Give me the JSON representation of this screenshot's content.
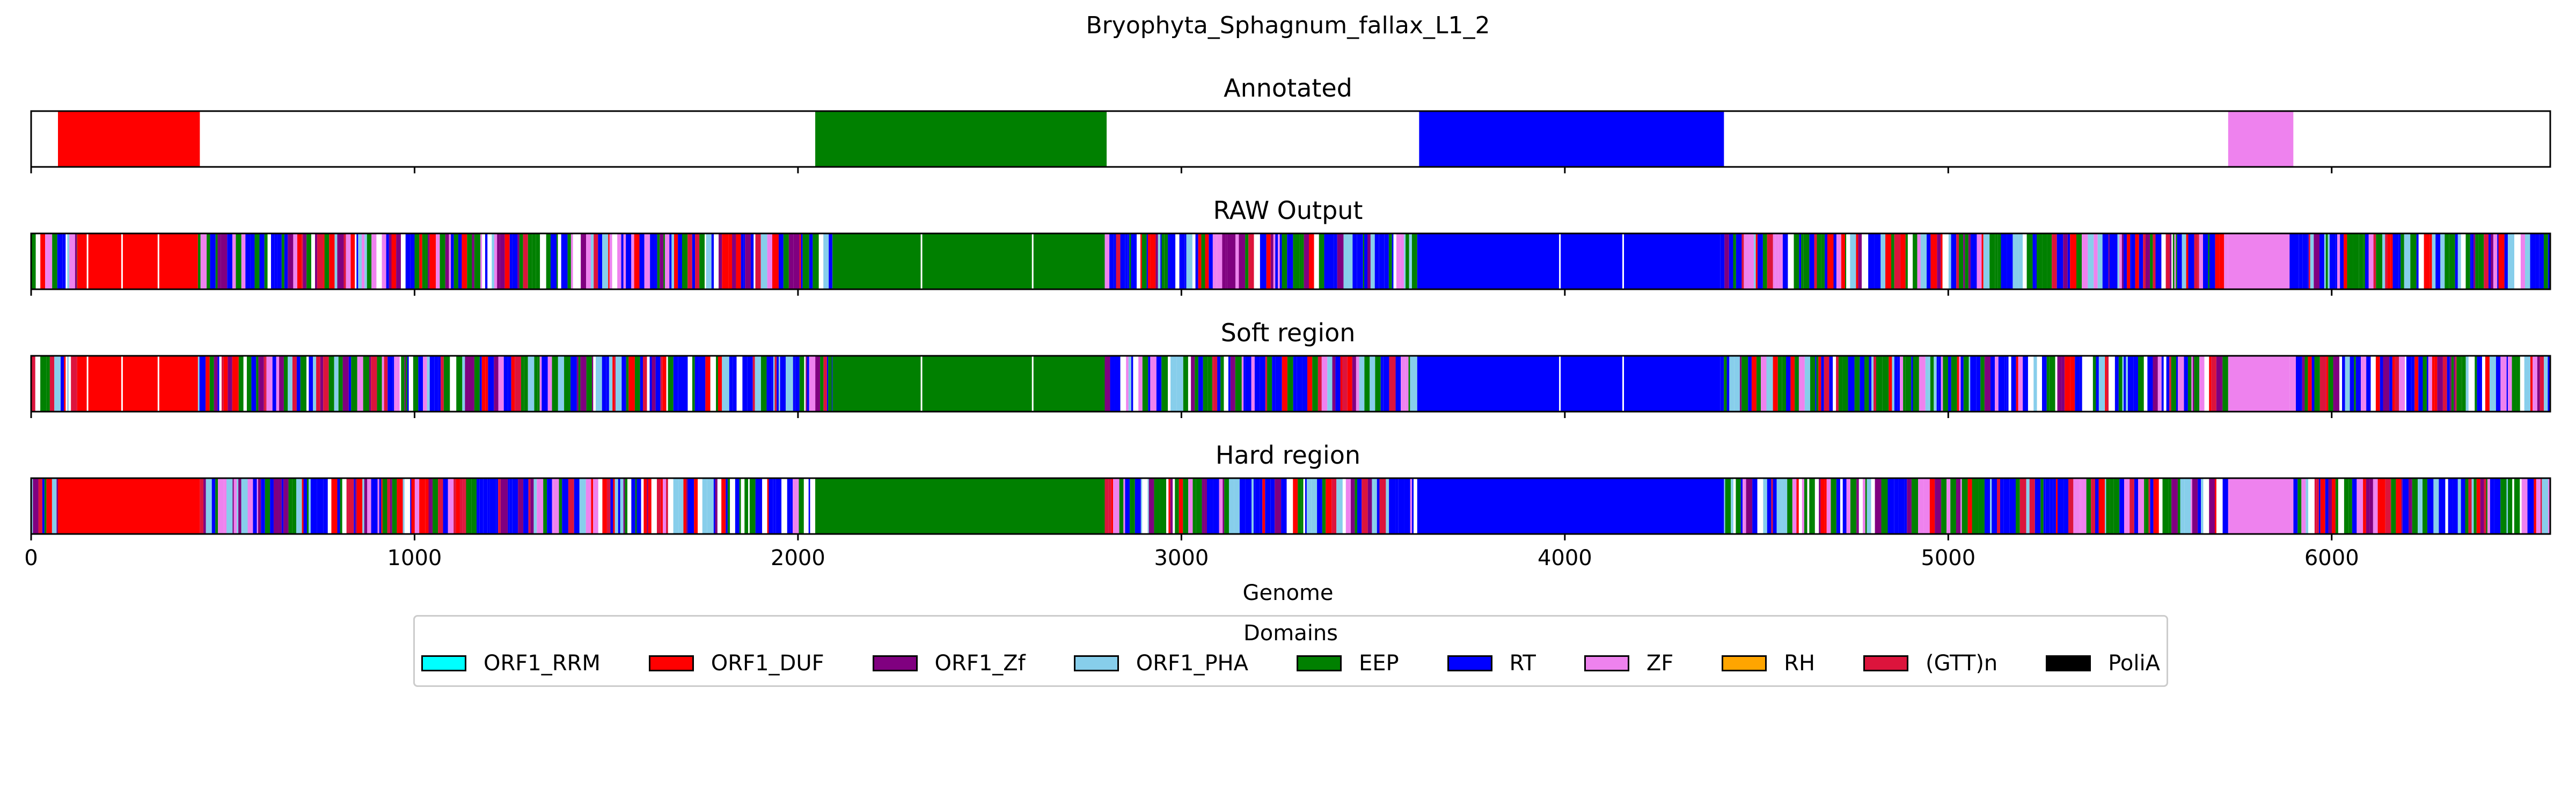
{
  "chart_data": {
    "type": "genome-track",
    "title": "Bryophyta_Sphagnum_fallax_L1_2",
    "xlabel": "Genome",
    "xlim": [
      0,
      6570
    ],
    "xticks": [
      0,
      1000,
      2000,
      3000,
      4000,
      5000,
      6000
    ],
    "legend_title": "Domains",
    "legend_placement": "bottom-center",
    "domains": [
      {
        "name": "ORF1_RRM",
        "color": "#00ffff"
      },
      {
        "name": "ORF1_DUF",
        "color": "#ff0000"
      },
      {
        "name": "ORF1_Zf",
        "color": "#800080"
      },
      {
        "name": "ORF1_PHA",
        "color": "#87ceeb"
      },
      {
        "name": "EEP",
        "color": "#008000"
      },
      {
        "name": "RT",
        "color": "#0000ff"
      },
      {
        "name": "ZF",
        "color": "#ee82ee"
      },
      {
        "name": "RH",
        "color": "#ffa500"
      },
      {
        "name": "(GTT)n",
        "color": "#dc143c"
      },
      {
        "name": "PoliA",
        "color": "#000000"
      }
    ],
    "tracks": [
      {
        "name": "Annotated",
        "segments": [
          {
            "domain": "ORF1_DUF",
            "start": 70,
            "end": 440
          },
          {
            "domain": "EEP",
            "start": 2045,
            "end": 2805
          },
          {
            "domain": "RT",
            "start": 3620,
            "end": 4415
          },
          {
            "domain": "ZF",
            "start": 5730,
            "end": 5900
          }
        ]
      },
      {
        "name": "RAW Output",
        "segments": [
          {
            "domain": "ORF1_DUF",
            "start": 120,
            "end": 435
          },
          {
            "domain": "EEP",
            "start": 2090,
            "end": 2800
          },
          {
            "domain": "RT",
            "start": 3615,
            "end": 4405
          },
          {
            "domain": "ZF",
            "start": 5730,
            "end": 5890
          }
        ],
        "noise": [
          [
            0,
            120
          ],
          [
            435,
            2090
          ],
          [
            2800,
            3615
          ],
          [
            4405,
            5730
          ],
          [
            5890,
            6570
          ]
        ]
      },
      {
        "name": "Soft region",
        "segments": [
          {
            "domain": "ORF1_DUF",
            "start": 120,
            "end": 435
          },
          {
            "domain": "EEP",
            "start": 2090,
            "end": 2800
          },
          {
            "domain": "RT",
            "start": 3615,
            "end": 4405
          },
          {
            "domain": "ZF",
            "start": 5730,
            "end": 5890
          }
        ],
        "noise": [
          [
            0,
            120
          ],
          [
            435,
            2090
          ],
          [
            2800,
            3615
          ],
          [
            4405,
            5730
          ],
          [
            5890,
            6570
          ]
        ]
      },
      {
        "name": "Hard region",
        "segments": [
          {
            "domain": "ORF1_DUF",
            "start": 70,
            "end": 440
          },
          {
            "domain": "EEP",
            "start": 2045,
            "end": 2800
          },
          {
            "domain": "RT",
            "start": 3615,
            "end": 4415
          },
          {
            "domain": "ZF",
            "start": 5730,
            "end": 5900
          }
        ],
        "noise": [
          [
            0,
            70
          ],
          [
            440,
            2045
          ],
          [
            2800,
            3615
          ],
          [
            4415,
            5730
          ],
          [
            5900,
            6570
          ]
        ]
      }
    ]
  }
}
